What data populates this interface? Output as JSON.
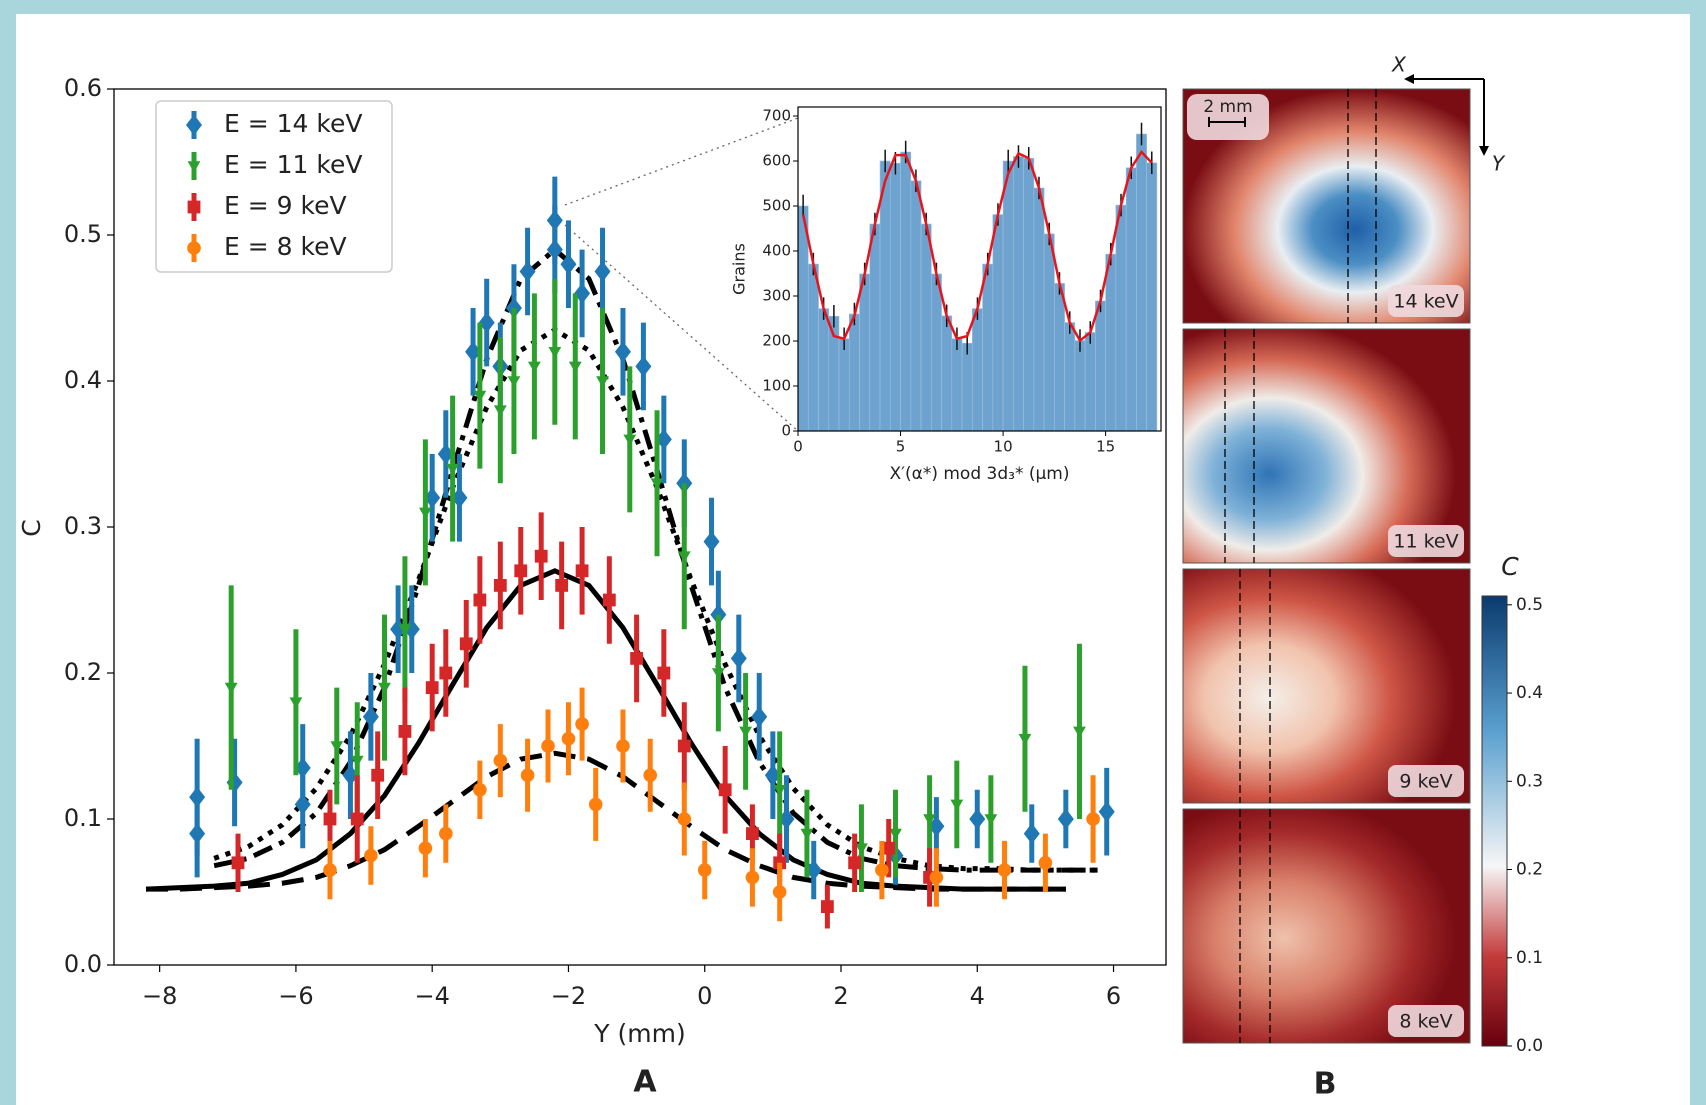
{
  "chart_data": [
    {
      "type": "scatter",
      "panel_label": "A",
      "xlabel": "Y (mm)",
      "ylabel": "C",
      "xlim": [
        -8.67,
        6.77
      ],
      "ylim": [
        0,
        0.6
      ],
      "xticks": [
        {
          "value": -8,
          "label": "−8"
        },
        {
          "value": -6,
          "label": "−6"
        },
        {
          "value": -4,
          "label": "−4"
        },
        {
          "value": -2,
          "label": "−2"
        },
        0,
        2,
        4,
        6
      ],
      "yticks": [
        {
          "value": 0,
          "label": "0.0"
        },
        0.1,
        0.2,
        0.3,
        0.4,
        0.5,
        0.6
      ],
      "legend": "upper left",
      "series": [
        {
          "name": "E = 14 keV",
          "color": "#1f77b4",
          "marker": "diamond",
          "x": [
            -7.45,
            -7.45,
            -6.9,
            -5.9,
            -5.9,
            -5.2,
            -4.9,
            -4.5,
            -4.3,
            -4.0,
            -3.8,
            -3.6,
            -3.4,
            -3.2,
            -3.0,
            -2.8,
            -2.6,
            -2.2,
            -2.2,
            -2.0,
            -1.8,
            -1.5,
            -1.2,
            -0.9,
            -0.6,
            -0.3,
            0.1,
            0.2,
            0.5,
            0.8,
            1.0,
            1.2,
            1.6,
            2.8,
            3.4,
            4.0,
            4.8,
            5.3,
            5.9
          ],
          "values": [
            0.115,
            0.09,
            0.125,
            0.135,
            0.11,
            0.13,
            0.17,
            0.23,
            0.23,
            0.32,
            0.35,
            0.32,
            0.42,
            0.44,
            0.41,
            0.45,
            0.475,
            0.51,
            0.49,
            0.48,
            0.46,
            0.475,
            0.42,
            0.41,
            0.36,
            0.33,
            0.29,
            0.24,
            0.21,
            0.17,
            0.13,
            0.1,
            0.065,
            0.075,
            0.095,
            0.1,
            0.09,
            0.1,
            0.105
          ],
          "errors": [
            0.04,
            0.03,
            0.03,
            0.03,
            0.03,
            0.03,
            0.03,
            0.03,
            0.03,
            0.03,
            0.03,
            0.03,
            0.03,
            0.03,
            0.03,
            0.03,
            0.03,
            0.03,
            0.03,
            0.03,
            0.03,
            0.03,
            0.03,
            0.03,
            0.03,
            0.03,
            0.03,
            0.03,
            0.03,
            0.03,
            0.03,
            0.03,
            0.02,
            0.02,
            0.02,
            0.02,
            0.02,
            0.02,
            0.03
          ]
        },
        {
          "name": "E = 11 keV",
          "color": "#2ca02c",
          "marker": "v",
          "x": [
            -6.95,
            -6.0,
            -5.4,
            -5.1,
            -4.7,
            -4.4,
            -4.1,
            -3.7,
            -3.3,
            -3.0,
            -2.8,
            -2.5,
            -2.2,
            -1.9,
            -1.5,
            -1.1,
            -0.7,
            -0.3,
            0.2,
            0.6,
            1.1,
            1.5,
            2.3,
            2.8,
            3.3,
            3.7,
            4.2,
            4.7,
            5.5
          ],
          "values": [
            0.19,
            0.18,
            0.15,
            0.14,
            0.19,
            0.23,
            0.31,
            0.34,
            0.39,
            0.38,
            0.4,
            0.41,
            0.42,
            0.41,
            0.4,
            0.36,
            0.33,
            0.28,
            0.2,
            0.16,
            0.12,
            0.09,
            0.08,
            0.09,
            0.1,
            0.11,
            0.1,
            0.155,
            0.16
          ],
          "errors": [
            0.07,
            0.05,
            0.04,
            0.04,
            0.05,
            0.05,
            0.05,
            0.05,
            0.05,
            0.05,
            0.05,
            0.05,
            0.05,
            0.05,
            0.05,
            0.05,
            0.05,
            0.05,
            0.04,
            0.04,
            0.04,
            0.03,
            0.03,
            0.03,
            0.03,
            0.03,
            0.03,
            0.05,
            0.06
          ]
        },
        {
          "name": "E = 9 keV",
          "color": "#d62728",
          "marker": "square",
          "x": [
            -6.85,
            -5.5,
            -5.1,
            -4.8,
            -4.4,
            -4.0,
            -3.8,
            -3.5,
            -3.3,
            -3.0,
            -2.7,
            -2.4,
            -2.1,
            -1.8,
            -1.4,
            -1.0,
            -0.6,
            -0.3,
            0.3,
            0.7,
            1.1,
            1.8,
            2.2,
            2.7,
            3.3
          ],
          "values": [
            0.07,
            0.1,
            0.1,
            0.13,
            0.16,
            0.19,
            0.2,
            0.22,
            0.25,
            0.26,
            0.27,
            0.28,
            0.26,
            0.27,
            0.25,
            0.21,
            0.2,
            0.15,
            0.12,
            0.09,
            0.07,
            0.04,
            0.07,
            0.08,
            0.06
          ],
          "errors": [
            0.02,
            0.02,
            0.03,
            0.03,
            0.03,
            0.03,
            0.03,
            0.03,
            0.03,
            0.03,
            0.03,
            0.03,
            0.03,
            0.03,
            0.03,
            0.03,
            0.03,
            0.03,
            0.03,
            0.02,
            0.02,
            0.015,
            0.02,
            0.02,
            0.02
          ]
        },
        {
          "name": "E = 8 keV",
          "color": "#ff7f0e",
          "marker": "circle",
          "x": [
            -5.5,
            -4.9,
            -4.1,
            -3.8,
            -3.3,
            -3.0,
            -2.6,
            -2.3,
            -2.0,
            -1.8,
            -1.6,
            -1.2,
            -0.8,
            -0.3,
            0.0,
            0.7,
            1.1,
            2.6,
            3.4,
            4.4,
            5.0,
            5.7
          ],
          "values": [
            0.065,
            0.075,
            0.08,
            0.09,
            0.12,
            0.14,
            0.13,
            0.15,
            0.155,
            0.165,
            0.11,
            0.15,
            0.13,
            0.1,
            0.065,
            0.06,
            0.05,
            0.065,
            0.06,
            0.065,
            0.07,
            0.1
          ],
          "errors": [
            0.02,
            0.02,
            0.02,
            0.02,
            0.02,
            0.025,
            0.025,
            0.025,
            0.025,
            0.025,
            0.025,
            0.025,
            0.025,
            0.025,
            0.02,
            0.02,
            0.02,
            0.02,
            0.02,
            0.02,
            0.02,
            0.03
          ]
        }
      ],
      "fits": [
        {
          "style": "dashdot",
          "color": "#000000",
          "x": [
            -7.2,
            -6.7,
            -6.2,
            -5.7,
            -5.2,
            -4.7,
            -4.2,
            -3.7,
            -3.2,
            -2.7,
            -2.2,
            -1.7,
            -1.2,
            -0.7,
            -0.2,
            0.3,
            0.8,
            1.3,
            1.8,
            2.3,
            2.8,
            3.3,
            3.8,
            4.3,
            4.8,
            5.3,
            5.8
          ],
          "values": [
            0.068,
            0.073,
            0.084,
            0.104,
            0.139,
            0.19,
            0.26,
            0.339,
            0.415,
            0.47,
            0.49,
            0.47,
            0.415,
            0.339,
            0.26,
            0.19,
            0.139,
            0.104,
            0.084,
            0.073,
            0.068,
            0.066,
            0.065,
            0.065,
            0.065,
            0.065,
            0.065
          ]
        },
        {
          "style": "dotted",
          "color": "#000000",
          "x": [
            -7.2,
            -6.7,
            -6.2,
            -5.7,
            -5.2,
            -4.7,
            -4.2,
            -3.7,
            -3.2,
            -2.7,
            -2.2,
            -1.7,
            -1.2,
            -0.7,
            -0.2,
            0.3,
            0.8,
            1.3,
            1.8,
            2.3,
            2.8,
            3.3,
            3.8,
            4.3,
            4.8,
            5.3,
            5.8
          ],
          "values": [
            0.073,
            0.081,
            0.096,
            0.121,
            0.157,
            0.206,
            0.264,
            0.327,
            0.382,
            0.421,
            0.435,
            0.421,
            0.382,
            0.327,
            0.264,
            0.206,
            0.157,
            0.121,
            0.096,
            0.081,
            0.073,
            0.068,
            0.066,
            0.066,
            0.065,
            0.065,
            0.065
          ]
        },
        {
          "style": "solid",
          "color": "#000000",
          "x": [
            -8.2,
            -7.7,
            -7.2,
            -6.7,
            -6.2,
            -5.7,
            -5.2,
            -4.7,
            -4.2,
            -3.7,
            -3.2,
            -2.7,
            -2.2,
            -1.7,
            -1.2,
            -0.7,
            -0.2,
            0.3,
            0.8,
            1.3,
            1.8,
            2.3,
            2.8,
            3.3,
            3.8,
            4.3,
            4.8,
            5.3
          ],
          "values": [
            0.052,
            0.053,
            0.054,
            0.056,
            0.062,
            0.072,
            0.09,
            0.116,
            0.152,
            0.192,
            0.231,
            0.26,
            0.27,
            0.26,
            0.231,
            0.192,
            0.152,
            0.116,
            0.09,
            0.072,
            0.062,
            0.056,
            0.054,
            0.053,
            0.052,
            0.052,
            0.052,
            0.052
          ]
        },
        {
          "style": "dashed",
          "color": "#000000",
          "x": [
            -8.2,
            -7.7,
            -7.2,
            -6.7,
            -6.2,
            -5.7,
            -5.2,
            -4.7,
            -4.2,
            -3.7,
            -3.2,
            -2.7,
            -2.2,
            -1.7,
            -1.2,
            -0.7,
            -0.2,
            0.3,
            0.8,
            1.3,
            1.8,
            2.3,
            2.8,
            3.3,
            3.8,
            4.3,
            4.8,
            5.3
          ],
          "values": [
            0.052,
            0.052,
            0.053,
            0.054,
            0.056,
            0.06,
            0.068,
            0.079,
            0.095,
            0.112,
            0.129,
            0.141,
            0.145,
            0.141,
            0.129,
            0.112,
            0.095,
            0.079,
            0.068,
            0.06,
            0.056,
            0.054,
            0.053,
            0.052,
            0.052,
            0.052,
            0.052,
            0.052
          ]
        }
      ]
    },
    {
      "type": "histogram",
      "xlabel": "X′(α*) mod 3d₃* (μm)",
      "ylabel": "Grains",
      "color": "#6fa3cf",
      "xlim": [
        0,
        17.7
      ],
      "ylim": [
        0,
        720
      ],
      "xticks": [
        0,
        5,
        10,
        15
      ],
      "yticks": [
        0,
        100,
        200,
        300,
        400,
        500,
        600,
        700
      ],
      "bins": [
        0,
        0.5,
        1,
        1.5,
        2,
        2.5,
        3,
        3.5,
        4,
        4.5,
        5,
        5.5,
        6,
        6.5,
        7,
        7.5,
        8,
        8.5,
        9,
        9.5,
        10,
        10.5,
        11,
        11.5,
        12,
        12.5,
        13,
        13.5,
        14,
        14.5,
        15,
        15.5,
        16,
        16.5,
        17,
        17.5
      ],
      "values": [
        500,
        371,
        272,
        255,
        205,
        260,
        349,
        460,
        600,
        595,
        620,
        556,
        460,
        349,
        256,
        205,
        195,
        272,
        371,
        481,
        600,
        610,
        606,
        540,
        438,
        328,
        241,
        201,
        219,
        289,
        393,
        502,
        585,
        660,
        596
      ],
      "errors": [
        25,
        25,
        25,
        25,
        25,
        25,
        25,
        25,
        25,
        25,
        25,
        25,
        25,
        25,
        25,
        25,
        25,
        25,
        25,
        25,
        25,
        25,
        25,
        25,
        25,
        25,
        25,
        25,
        25,
        25,
        25,
        25,
        25,
        25,
        25
      ],
      "fit": {
        "color": "#e8141c",
        "x": [
          0.25,
          0.75,
          1.25,
          1.75,
          2.25,
          2.75,
          3.25,
          3.75,
          4.25,
          4.75,
          5.25,
          5.75,
          6.25,
          6.75,
          7.25,
          7.75,
          8.25,
          8.75,
          9.25,
          9.75,
          10.25,
          10.75,
          11.25,
          11.75,
          12.25,
          12.75,
          13.25,
          13.75,
          14.25,
          14.75,
          15.25,
          15.75,
          16.25,
          16.75,
          17.25
        ],
        "values": [
          481,
          371,
          272,
          211,
          205,
          256,
          349,
          460,
          556,
          613,
          613,
          556,
          460,
          349,
          256,
          205,
          211,
          272,
          371,
          481,
          572,
          617,
          606,
          540,
          438,
          328,
          241,
          201,
          219,
          289,
          393,
          502,
          585,
          620,
          596
        ]
      }
    },
    {
      "type": "heatmap",
      "panel_label": "B",
      "panels": [
        "14 keV",
        "11 keV",
        "9 keV",
        "8 keV"
      ],
      "scale_bar": "2 mm",
      "axis_labels": [
        "X",
        "Y"
      ],
      "colorbar": {
        "title": "C",
        "lim": [
          0,
          0.51
        ],
        "ticks": [
          {
            "value": 0,
            "label": "0.0"
          },
          0.1,
          0.2,
          0.3,
          0.4,
          0.5
        ]
      }
    }
  ]
}
